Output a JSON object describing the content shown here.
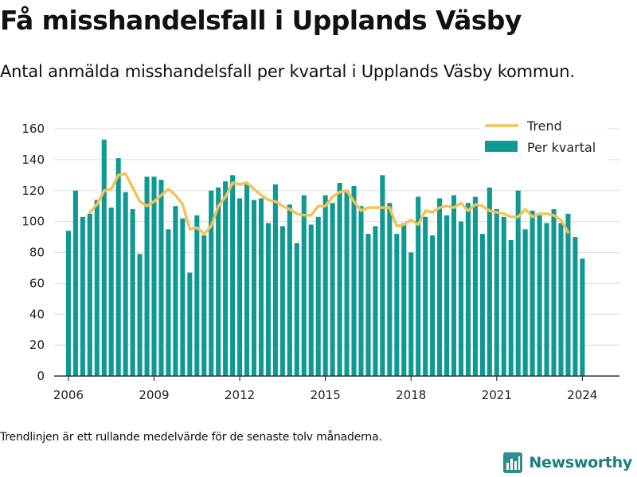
{
  "title": "Få misshandelsfall i Upplands Väsby",
  "subtitle": "Antal anmälda misshandelsfall per kvartal i Upplands Väsby kommun.",
  "footnote": "Trendlinjen är ett rullande medelvärde för de senaste tolv månaderna.",
  "brand": {
    "name": "Newsworthy",
    "icon": "newsworthy-logo-icon"
  },
  "colors": {
    "bars": "#0e9a93",
    "trend": "#f2c25c",
    "grid": "#dddddd",
    "axis": "#333333"
  },
  "chart_data": {
    "type": "bar",
    "grid": true,
    "legend_position": "top-right",
    "ylim": [
      0,
      160
    ],
    "yticks": [
      0,
      20,
      40,
      60,
      80,
      100,
      120,
      140,
      160
    ],
    "xlim": [
      2005.5,
      2025.3
    ],
    "xticks": [
      2006,
      2009,
      2012,
      2015,
      2018,
      2021,
      2024
    ],
    "x_start": 2006,
    "x_step": 0.25,
    "series": [
      {
        "name": "Per kvartal",
        "type": "bar",
        "values": [
          94,
          120,
          103,
          105,
          114,
          153,
          109,
          141,
          119,
          108,
          79,
          129,
          129,
          127,
          95,
          110,
          102,
          67,
          104,
          91,
          120,
          122,
          126,
          130,
          115,
          124,
          114,
          115,
          99,
          124,
          97,
          111,
          86,
          117,
          98,
          103,
          117,
          112,
          125,
          120,
          123,
          110,
          92,
          97,
          130,
          112,
          92,
          99,
          80,
          116,
          103,
          91,
          115,
          104,
          117,
          100,
          112,
          116,
          92,
          122,
          108,
          103,
          88,
          120,
          95,
          107,
          104,
          99,
          108,
          99,
          105,
          90,
          76
        ]
      },
      {
        "name": "Trend",
        "type": "line",
        "x_start": 2006.75,
        "values": [
          106,
          111,
          120,
          121,
          130,
          131,
          122,
          113,
          110,
          113,
          117,
          121,
          117,
          111,
          95,
          96,
          92,
          97,
          110,
          116,
          125,
          124,
          125,
          121,
          117,
          114,
          113,
          110,
          108,
          105,
          104,
          104,
          110,
          110,
          116,
          119,
          120,
          113,
          107,
          109,
          109,
          109,
          109,
          97,
          98,
          101,
          98,
          107,
          106,
          109,
          110,
          109,
          112,
          107,
          111,
          110,
          107,
          106,
          105,
          103,
          103,
          108,
          103,
          105,
          105,
          104,
          101,
          93
        ]
      }
    ]
  }
}
